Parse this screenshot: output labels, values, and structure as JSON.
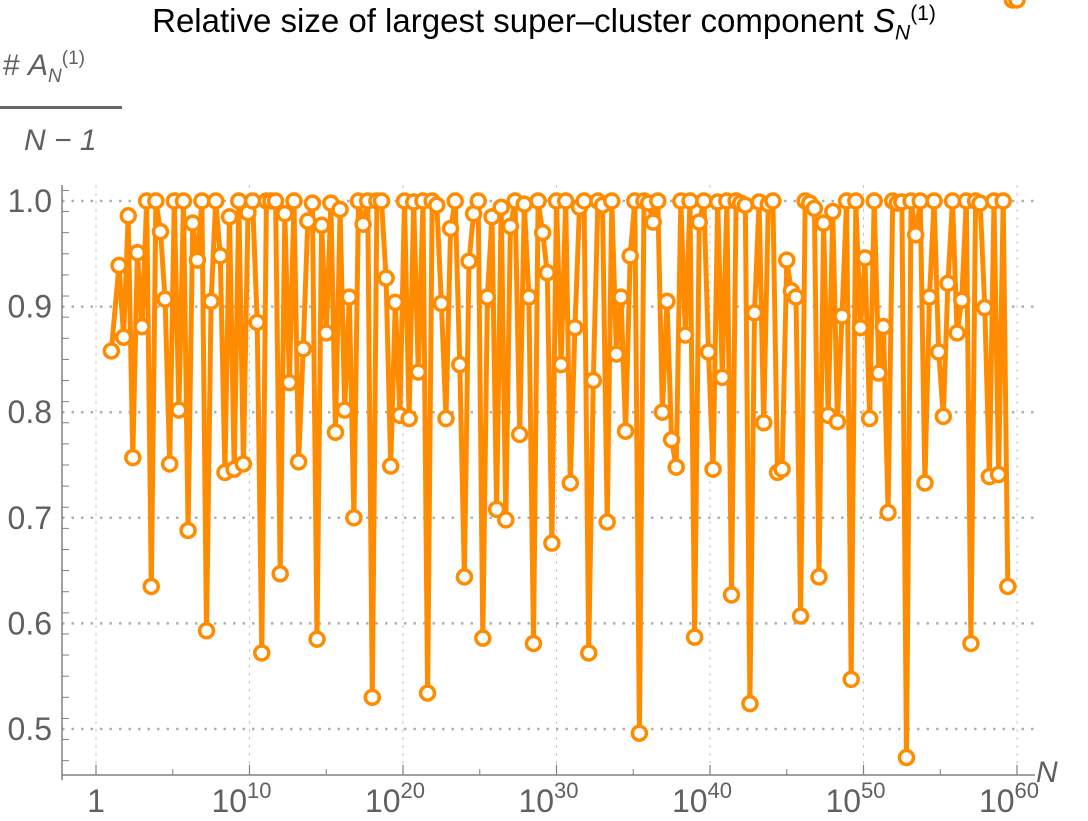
{
  "title": {
    "text": "Relative size of largest super–cluster component",
    "symbol": "S",
    "symbol_sub": "N",
    "symbol_sup": "(1)"
  },
  "ylabel": {
    "numerator_prefix": "#",
    "numerator_symbol": "A",
    "numerator_sub": "N",
    "numerator_sup": "(1)",
    "denominator": "N − 1"
  },
  "xlabel": "N",
  "colors": {
    "series": "#FF8C00",
    "marker_fill": "#FFFFFF",
    "axis": "#808080",
    "grid": "#B0B0B0",
    "text": "#606060"
  },
  "chart_data": {
    "type": "line",
    "title": "Relative size of largest super-cluster component S_N^(1)",
    "xlabel": "N",
    "ylabel": "#A_N^(1) / (N-1)",
    "xscale": "log",
    "xlim_log10": [
      -2.3,
      61.5
    ],
    "ylim": [
      0.465,
      1.02
    ],
    "x_ticks": [
      {
        "log10": 0,
        "label": "1"
      },
      {
        "log10": 10,
        "label": "10^10"
      },
      {
        "log10": 20,
        "label": "10^20"
      },
      {
        "log10": 30,
        "label": "10^30"
      },
      {
        "log10": 40,
        "label": "10^40"
      },
      {
        "log10": 50,
        "label": "10^50"
      },
      {
        "log10": 60,
        "label": "10^60"
      }
    ],
    "y_ticks": [
      0.5,
      0.6,
      0.7,
      0.8,
      0.9,
      1.0
    ],
    "grid": true,
    "markers": "open-circle",
    "series": [
      {
        "name": "S_N^(1)",
        "x_log10": [
          1.0,
          1.5,
          1.8,
          2.1,
          2.4,
          2.7,
          3.0,
          3.3,
          3.6,
          3.9,
          4.2,
          4.5,
          4.8,
          5.1,
          5.4,
          5.7,
          6.0,
          6.3,
          6.6,
          6.9,
          7.2,
          7.5,
          7.8,
          8.1,
          8.4,
          8.7,
          9.0,
          9.3,
          9.6,
          9.9,
          10.2,
          10.5,
          10.8,
          11.1,
          11.4,
          11.7,
          12.0,
          12.3,
          12.6,
          12.9,
          13.2,
          13.5,
          13.8,
          14.1,
          14.4,
          14.7,
          15.0,
          15.3,
          15.6,
          15.9,
          16.2,
          16.5,
          16.8,
          17.1,
          17.4,
          17.7,
          18.0,
          18.3,
          18.6,
          18.9,
          19.2,
          19.5,
          19.8,
          20.1,
          20.4,
          20.7,
          21.0,
          21.3,
          21.6,
          21.9,
          22.2,
          22.5,
          22.8,
          23.1,
          23.4,
          23.7,
          24.0,
          24.3,
          24.6,
          24.9,
          25.2,
          25.5,
          25.8,
          26.1,
          26.4,
          26.7,
          27.0,
          27.3,
          27.6,
          27.9,
          28.2,
          28.5,
          28.8,
          29.1,
          29.4,
          29.7,
          30.0,
          30.3,
          30.6,
          30.9,
          31.2,
          31.5,
          31.8,
          32.1,
          32.4,
          32.7,
          33.0,
          33.3,
          33.6,
          33.9,
          34.2,
          34.5,
          34.8,
          35.1,
          35.4,
          35.7,
          36.0,
          36.3,
          36.6,
          36.9,
          37.2,
          37.5,
          37.8,
          38.1,
          38.4,
          38.7,
          39.0,
          39.3,
          39.6,
          39.9,
          40.2,
          40.5,
          40.8,
          41.1,
          41.4,
          41.7,
          42.0,
          42.3,
          42.6,
          42.9,
          43.2,
          43.5,
          43.8,
          44.1,
          44.4,
          44.7,
          45.0,
          45.3,
          45.6,
          45.9,
          46.2,
          46.5,
          46.8,
          47.1,
          47.4,
          47.7,
          48.0,
          48.3,
          48.6,
          48.9,
          49.2,
          49.5,
          49.8,
          50.1,
          50.4,
          50.7,
          51.0,
          51.3,
          51.6,
          51.9,
          52.2,
          52.5,
          52.8,
          53.1,
          53.4,
          53.7,
          54.0,
          54.3,
          54.6,
          54.9,
          55.2,
          55.5,
          55.8,
          56.1,
          56.4,
          56.7,
          57.0,
          57.3,
          57.6,
          57.9,
          58.2,
          58.5,
          58.8,
          59.1,
          59.4,
          59.7,
          60.0
        ],
        "values": [
          0.858,
          0.939,
          0.871,
          0.986,
          0.757,
          0.951,
          0.881,
          1.0,
          0.635,
          1.0,
          0.971,
          0.907,
          0.751,
          1.0,
          0.802,
          1.0,
          0.688,
          0.979,
          0.944,
          1.0,
          0.593,
          0.905,
          1.0,
          0.948,
          0.743,
          0.985,
          0.746,
          1.0,
          0.751,
          0.989,
          1.0,
          0.885,
          0.572,
          1.0,
          1.0,
          1.0,
          0.647,
          0.988,
          0.828,
          1.0,
          0.753,
          0.86,
          0.981,
          0.998,
          0.585,
          0.977,
          0.875,
          0.998,
          0.781,
          0.992,
          0.802,
          0.909,
          0.7,
          1.0,
          0.978,
          1.0,
          0.53,
          1.0,
          1.0,
          0.927,
          0.749,
          0.904,
          0.797,
          1.0,
          0.794,
          0.999,
          0.838,
          1.0,
          0.534,
          1.0,
          0.996,
          0.903,
          0.794,
          0.974,
          1.0,
          0.845,
          0.644,
          0.943,
          0.988,
          1.0,
          0.586,
          0.909,
          0.985,
          0.708,
          0.994,
          0.698,
          0.976,
          1.0,
          0.779,
          0.997,
          0.909,
          0.581,
          1.0,
          0.97,
          0.932,
          0.676,
          1.0,
          0.845,
          1.0,
          0.733,
          0.88,
          0.994,
          1.0,
          0.572,
          0.83,
          1.0,
          0.996,
          0.696,
          1.0,
          0.855,
          0.909,
          0.782,
          0.948,
          1.0,
          0.496,
          1.0,
          0.998,
          0.98,
          1.0,
          0.8,
          0.905,
          0.774,
          0.748,
          1.0,
          0.873,
          1.0,
          0.587,
          0.98,
          1.0,
          0.857,
          0.746,
          0.999,
          0.833,
          1.0,
          0.627,
          1.0,
          0.998,
          0.996,
          0.524,
          0.894,
          0.999,
          0.79,
          0.997,
          1.0,
          0.743,
          0.746,
          0.944,
          0.915,
          0.909,
          0.607,
          1.0,
          0.998,
          0.993,
          0.644,
          0.979,
          0.797,
          0.99,
          0.791,
          0.891,
          1.0,
          0.547,
          1.0,
          0.88,
          0.946,
          0.794,
          1.0,
          0.837,
          0.881,
          0.705,
          1.0,
          0.998,
          0.999,
          0.473,
          1.0,
          0.968,
          1.0,
          0.733,
          0.909,
          1.0,
          0.857,
          0.796,
          0.922,
          1.0,
          0.875,
          0.906,
          1.0,
          0.581,
          1.0,
          0.998,
          0.899,
          0.739,
          1.0,
          0.741,
          1.0,
          0.635
        ]
      }
    ]
  }
}
